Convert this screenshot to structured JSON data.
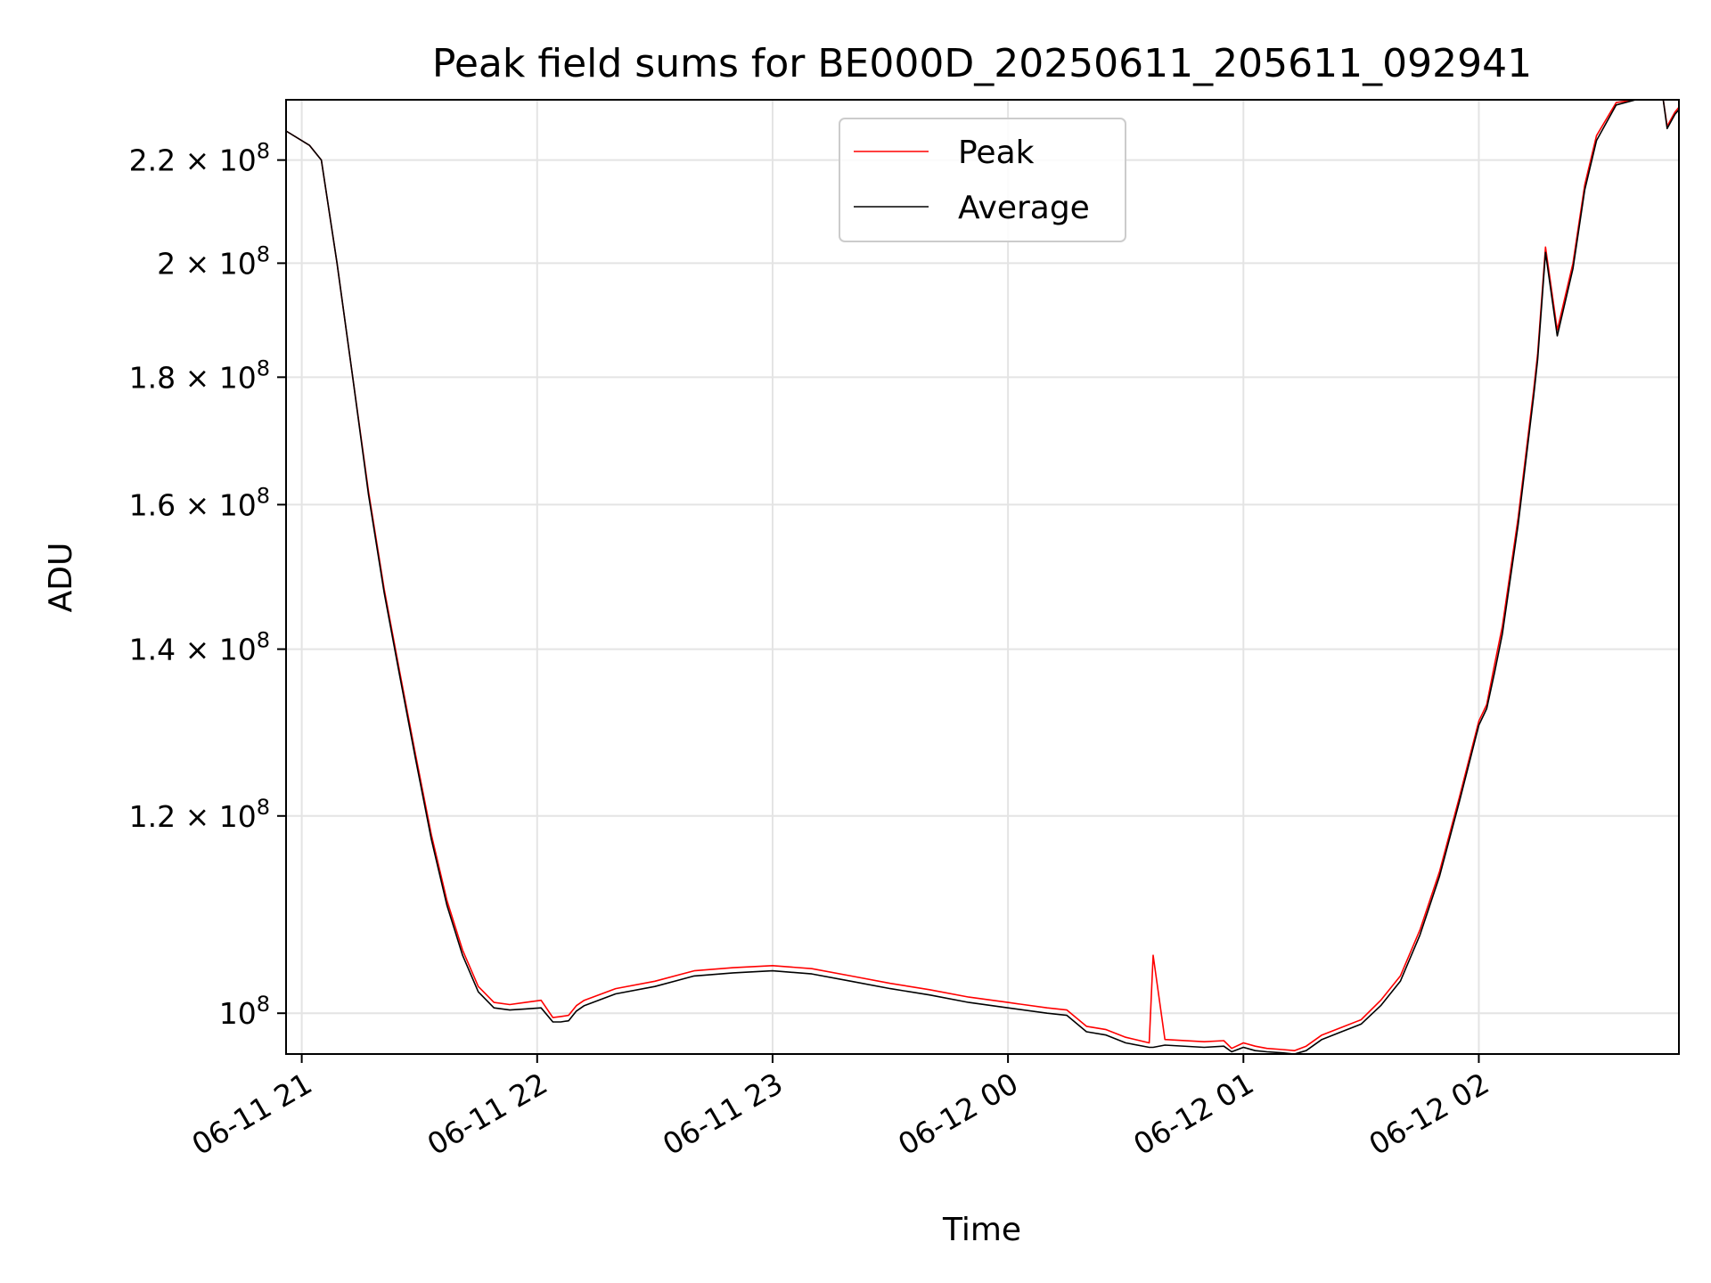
{
  "chart_data": {
    "type": "line",
    "title": "Peak field sums for BE000D_20250611_205611_092941",
    "xlabel": "Time",
    "ylabel": "ADU",
    "yscale": "log",
    "grid": true,
    "legend_position": "top-center",
    "xlim": [
      "2025-06-11 20:56",
      "2025-06-12 02:51"
    ],
    "ylim": [
      96300000,
      232600000
    ],
    "x_ticks": [
      {
        "value": "2025-06-11 21:00",
        "label": "06-11 21"
      },
      {
        "value": "2025-06-11 22:00",
        "label": "06-11 22"
      },
      {
        "value": "2025-06-11 23:00",
        "label": "06-11 23"
      },
      {
        "value": "2025-06-12 00:00",
        "label": "06-12 00"
      },
      {
        "value": "2025-06-12 01:00",
        "label": "06-12 01"
      },
      {
        "value": "2025-06-12 02:00",
        "label": "06-12 02"
      }
    ],
    "y_ticks": [
      {
        "value": 100000000,
        "mantissa": "",
        "exponent": "8"
      },
      {
        "value": 120000000,
        "mantissa": "1.2",
        "exponent": "8"
      },
      {
        "value": 140000000,
        "mantissa": "1.4",
        "exponent": "8"
      },
      {
        "value": 160000000,
        "mantissa": "1.6",
        "exponent": "8"
      },
      {
        "value": 180000000,
        "mantissa": "1.8",
        "exponent": "8"
      },
      {
        "value": 200000000,
        "mantissa": "2",
        "exponent": "8"
      },
      {
        "value": 220000000,
        "mantissa": "2.2",
        "exponent": "8"
      }
    ],
    "x": [
      "2025-06-11 20:56",
      "2025-06-11 21:02",
      "2025-06-11 21:05",
      "2025-06-11 21:09",
      "2025-06-11 21:13",
      "2025-06-11 21:17",
      "2025-06-11 21:21",
      "2025-06-11 21:25",
      "2025-06-11 21:29",
      "2025-06-11 21:33",
      "2025-06-11 21:37",
      "2025-06-11 21:41",
      "2025-06-11 21:45",
      "2025-06-11 21:49",
      "2025-06-11 21:53",
      "2025-06-11 21:57",
      "2025-06-11 22:01",
      "2025-06-11 22:04",
      "2025-06-11 22:06",
      "2025-06-11 22:08",
      "2025-06-11 22:10",
      "2025-06-11 22:12",
      "2025-06-11 22:20",
      "2025-06-11 22:30",
      "2025-06-11 22:40",
      "2025-06-11 22:50",
      "2025-06-11 23:00",
      "2025-06-11 23:10",
      "2025-06-11 23:20",
      "2025-06-11 23:30",
      "2025-06-11 23:40",
      "2025-06-11 23:50",
      "2025-06-12 00:00",
      "2025-06-12 00:10",
      "2025-06-12 00:15",
      "2025-06-12 00:20",
      "2025-06-12 00:25",
      "2025-06-12 00:30",
      "2025-06-12 00:36",
      "2025-06-12 00:37",
      "2025-06-12 00:40",
      "2025-06-12 00:50",
      "2025-06-12 00:55",
      "2025-06-12 00:57",
      "2025-06-12 01:00",
      "2025-06-12 01:03",
      "2025-06-12 01:06",
      "2025-06-12 01:10",
      "2025-06-12 01:13",
      "2025-06-12 01:16",
      "2025-06-12 01:20",
      "2025-06-12 01:25",
      "2025-06-12 01:30",
      "2025-06-12 01:35",
      "2025-06-12 01:40",
      "2025-06-12 01:45",
      "2025-06-12 01:50",
      "2025-06-12 01:55",
      "2025-06-12 02:00",
      "2025-06-12 02:02",
      "2025-06-12 02:04",
      "2025-06-12 02:06",
      "2025-06-12 02:10",
      "2025-06-12 02:14",
      "2025-06-12 02:15",
      "2025-06-12 02:17",
      "2025-06-12 02:20",
      "2025-06-12 02:24",
      "2025-06-12 02:27",
      "2025-06-12 02:30",
      "2025-06-12 02:35",
      "2025-06-12 02:40",
      "2025-06-12 02:45",
      "2025-06-12 02:47",
      "2025-06-12 02:48",
      "2025-06-12 02:50",
      "2025-06-12 02:51"
    ],
    "series": [
      {
        "name": "Peak",
        "color": "#ff0000",
        "values": [
          226000000,
          223000000,
          220000000,
          200000000,
          180000000,
          162000000,
          148000000,
          137000000,
          127000000,
          118000000,
          111000000,
          106000000,
          102500000,
          101000000,
          100800000,
          101000000,
          101200000,
          99600000,
          99700000,
          99800000,
          100700000,
          101200000,
          102300000,
          103000000,
          104000000,
          104300000,
          104500000,
          104200000,
          103500000,
          102800000,
          102200000,
          101500000,
          101000000,
          100500000,
          100300000,
          98800000,
          98500000,
          97800000,
          97300000,
          105500000,
          97600000,
          97400000,
          97500000,
          96800000,
          97300000,
          97000000,
          96800000,
          96700000,
          96600000,
          97000000,
          98000000,
          98700000,
          99400000,
          101200000,
          103500000,
          108000000,
          114000000,
          122000000,
          131000000,
          133000000,
          138000000,
          143000000,
          158000000,
          178000000,
          184000000,
          203000000,
          188000000,
          200000000,
          215000000,
          225000000,
          232000000,
          232600000,
          232600000,
          232600000,
          227000000,
          230000000,
          231000000
        ]
      },
      {
        "name": "Average",
        "color": "#000000",
        "values": [
          226000000,
          223000000,
          220000000,
          200000000,
          180000000,
          161500000,
          147500000,
          136500000,
          126500000,
          117500000,
          110500000,
          105500000,
          102000000,
          100500000,
          100300000,
          100400000,
          100500000,
          99200000,
          99200000,
          99300000,
          100200000,
          100700000,
          101800000,
          102500000,
          103500000,
          103800000,
          104000000,
          103700000,
          103000000,
          102300000,
          101700000,
          101000000,
          100500000,
          100000000,
          99800000,
          98300000,
          98000000,
          97300000,
          96900000,
          96900000,
          97100000,
          96900000,
          97000000,
          96500000,
          96900000,
          96600000,
          96500000,
          96400000,
          96300000,
          96600000,
          97600000,
          98300000,
          99000000,
          100700000,
          103000000,
          107500000,
          113500000,
          121500000,
          130500000,
          132500000,
          137000000,
          142000000,
          157000000,
          177000000,
          183000000,
          202000000,
          187000000,
          199000000,
          214000000,
          224000000,
          231500000,
          232600000,
          232600000,
          232600000,
          226500000,
          229500000,
          230500000
        ]
      }
    ]
  }
}
